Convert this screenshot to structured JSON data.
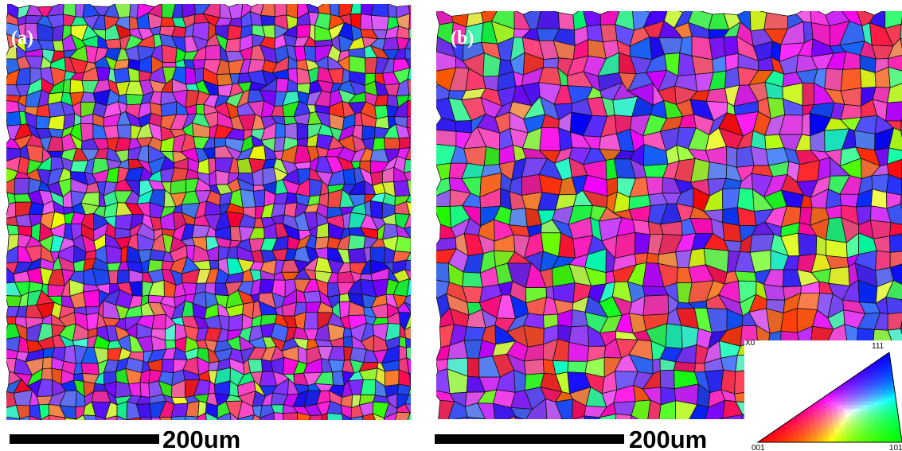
{
  "panels": [
    {
      "label": "(a)",
      "scale_bar": "200um"
    },
    {
      "label": "(b)",
      "scale_bar": "200um"
    }
  ],
  "legend": {
    "axis": "X0",
    "corners": [
      "001",
      "101",
      "111"
    ]
  }
}
